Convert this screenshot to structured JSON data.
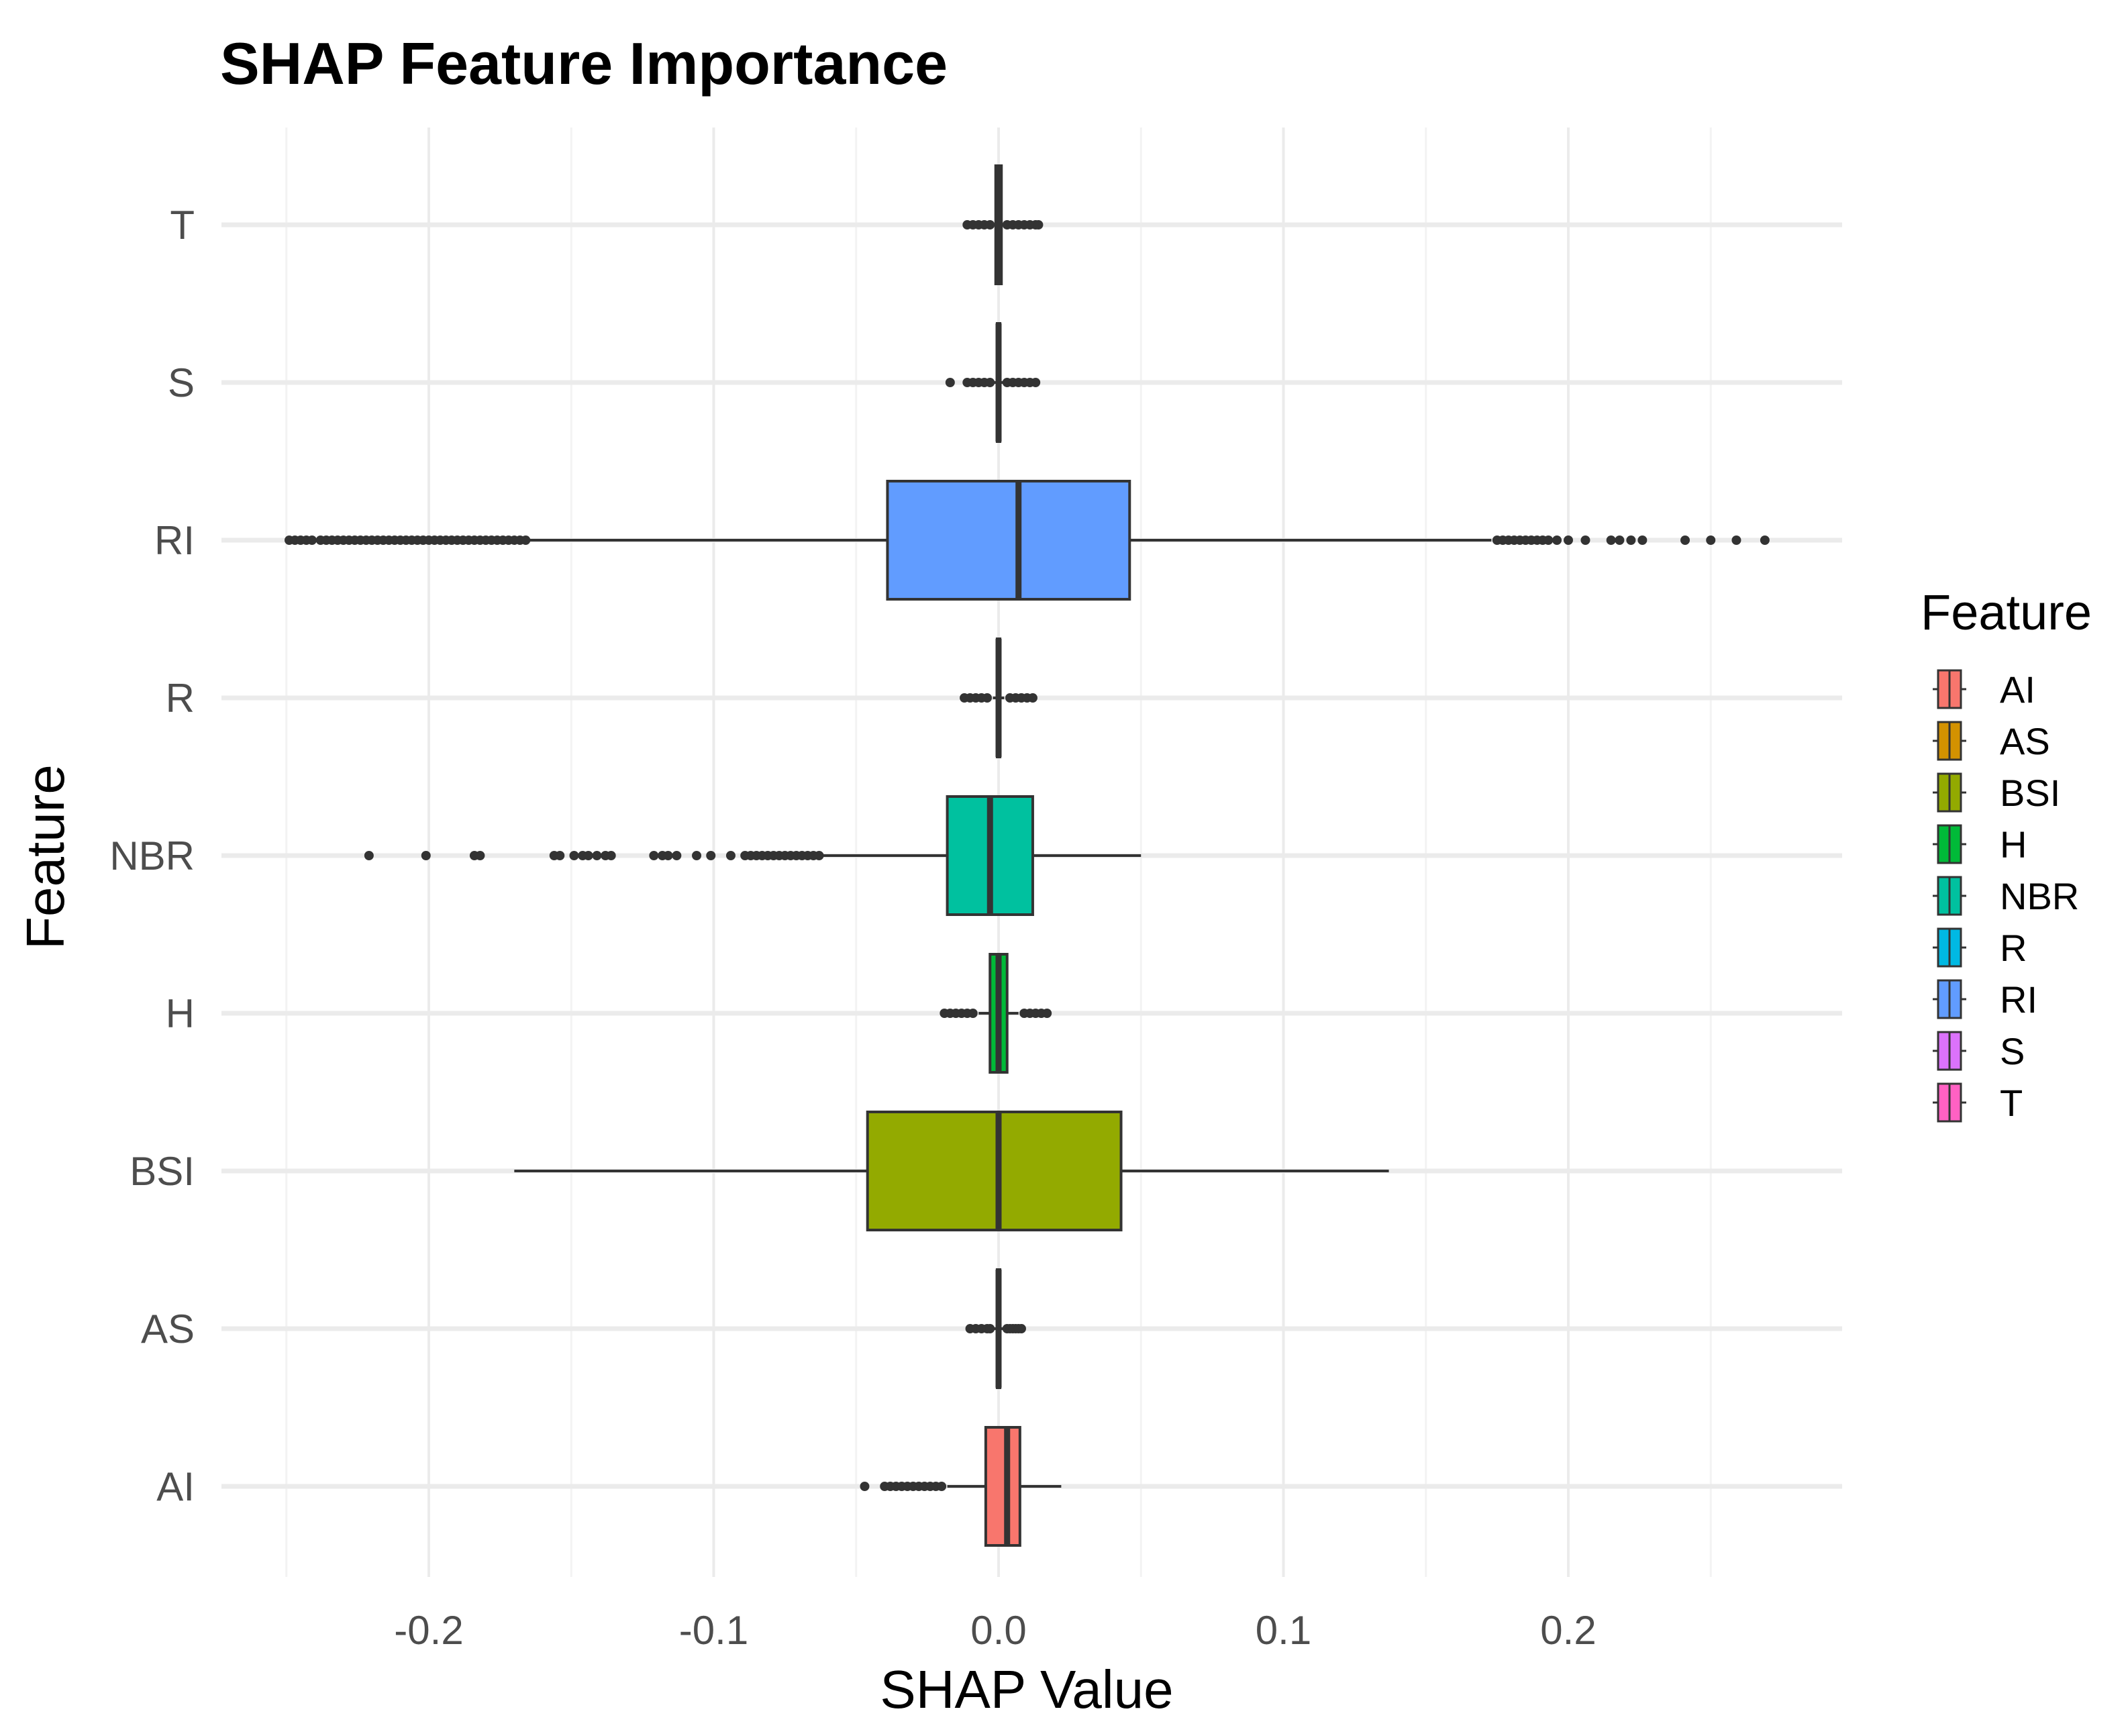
{
  "chart_data": {
    "type": "boxplot",
    "title": "SHAP Feature Importance",
    "xlabel": "SHAP Value",
    "ylabel": "Feature",
    "xlim": [
      -0.26,
      0.295
    ],
    "x_ticks": [
      -0.2,
      -0.1,
      0.0,
      0.1,
      0.2
    ],
    "x_tick_labels": [
      "-0.2",
      "-0.1",
      "0.0",
      "0.1",
      "0.2"
    ],
    "orientation": "horizontal",
    "grid": true,
    "legend": {
      "title": "Feature",
      "position": "right",
      "entries": [
        "AI",
        "AS",
        "BSI",
        "H",
        "NBR",
        "R",
        "RI",
        "S",
        "T"
      ]
    },
    "categories": [
      "AI",
      "AS",
      "BSI",
      "H",
      "NBR",
      "R",
      "RI",
      "S",
      "T"
    ],
    "series": [
      {
        "name": "AI",
        "color": "#F8766D",
        "q1": -0.0045,
        "median": 0.003,
        "q3": 0.0075,
        "whisker_low": -0.018,
        "whisker_high": 0.022,
        "outliers": [
          -0.047,
          -0.04,
          -0.038,
          -0.036,
          -0.034,
          -0.032,
          -0.03,
          -0.028,
          -0.026,
          -0.024,
          -0.022,
          -0.02
        ]
      },
      {
        "name": "AS",
        "color": "#D39200",
        "q1": -0.0005,
        "median": 0.0,
        "q3": 0.0005,
        "whisker_low": -0.0015,
        "whisker_high": 0.0015,
        "outliers": [
          -0.01,
          -0.008,
          -0.006,
          -0.004,
          -0.003,
          0.003,
          0.004,
          0.005,
          0.006,
          0.007,
          0.008
        ]
      },
      {
        "name": "BSI",
        "color": "#93AA00",
        "q1": -0.046,
        "median": 0.0,
        "q3": 0.043,
        "whisker_low": -0.17,
        "whisker_high": 0.137,
        "outliers": []
      },
      {
        "name": "H",
        "color": "#00BA38",
        "q1": -0.003,
        "median": 0.0,
        "q3": 0.003,
        "whisker_low": -0.007,
        "whisker_high": 0.007,
        "outliers": [
          -0.019,
          -0.017,
          -0.015,
          -0.013,
          -0.011,
          -0.009,
          0.009,
          0.011,
          0.013,
          0.015,
          0.017
        ]
      },
      {
        "name": "NBR",
        "color": "#00C19F",
        "q1": -0.018,
        "median": -0.003,
        "q3": 0.012,
        "whisker_low": -0.062,
        "whisker_high": 0.05,
        "outliers": [
          -0.221,
          -0.201,
          -0.184,
          -0.182,
          -0.156,
          -0.154,
          -0.149,
          -0.146,
          -0.144,
          -0.141,
          -0.138,
          -0.136,
          -0.121,
          -0.118,
          -0.116,
          -0.113,
          -0.106,
          -0.101,
          -0.094,
          -0.089,
          -0.087,
          -0.085,
          -0.083,
          -0.081,
          -0.079,
          -0.077,
          -0.075,
          -0.073,
          -0.071,
          -0.069,
          -0.067,
          -0.065,
          -0.063
        ]
      },
      {
        "name": "R",
        "color": "#00B9E3",
        "q1": -0.0005,
        "median": 0.0,
        "q3": 0.0005,
        "whisker_low": -0.002,
        "whisker_high": 0.002,
        "outliers": [
          -0.012,
          -0.01,
          -0.008,
          -0.006,
          -0.004,
          0.004,
          0.006,
          0.008,
          0.01,
          0.012
        ]
      },
      {
        "name": "RI",
        "color": "#619CFF",
        "q1": -0.039,
        "median": 0.007,
        "q3": 0.046,
        "whisker_low": -0.165,
        "whisker_high": 0.173,
        "outliers": [
          -0.249,
          -0.247,
          -0.245,
          -0.243,
          -0.241,
          -0.238,
          -0.236,
          -0.234,
          -0.232,
          -0.23,
          -0.228,
          -0.226,
          -0.224,
          -0.222,
          -0.22,
          -0.218,
          -0.216,
          -0.214,
          -0.212,
          -0.21,
          -0.208,
          -0.206,
          -0.204,
          -0.202,
          -0.2,
          -0.198,
          -0.196,
          -0.194,
          -0.192,
          -0.19,
          -0.188,
          -0.186,
          -0.184,
          -0.182,
          -0.18,
          -0.178,
          -0.176,
          -0.174,
          -0.172,
          -0.17,
          -0.168,
          -0.166,
          0.175,
          0.177,
          0.179,
          0.181,
          0.183,
          0.185,
          0.187,
          0.189,
          0.191,
          0.193,
          0.196,
          0.2,
          0.206,
          0.215,
          0.218,
          0.222,
          0.226,
          0.241,
          0.25,
          0.259,
          0.269
        ]
      },
      {
        "name": "S",
        "color": "#DB72FB",
        "q1": -0.0005,
        "median": 0.0,
        "q3": 0.0005,
        "whisker_low": -0.002,
        "whisker_high": 0.002,
        "outliers": [
          -0.017,
          -0.011,
          -0.009,
          -0.007,
          -0.005,
          -0.003,
          0.003,
          0.005,
          0.007,
          0.009,
          0.011,
          0.013
        ]
      },
      {
        "name": "T",
        "color": "#FF61C3",
        "q1": -0.001,
        "median": 0.0,
        "q3": 0.001,
        "whisker_low": -0.002,
        "whisker_high": 0.002,
        "outliers": [
          -0.011,
          -0.009,
          -0.007,
          -0.005,
          -0.003,
          0.003,
          0.005,
          0.007,
          0.009,
          0.011,
          0.013,
          0.014
        ]
      }
    ]
  }
}
